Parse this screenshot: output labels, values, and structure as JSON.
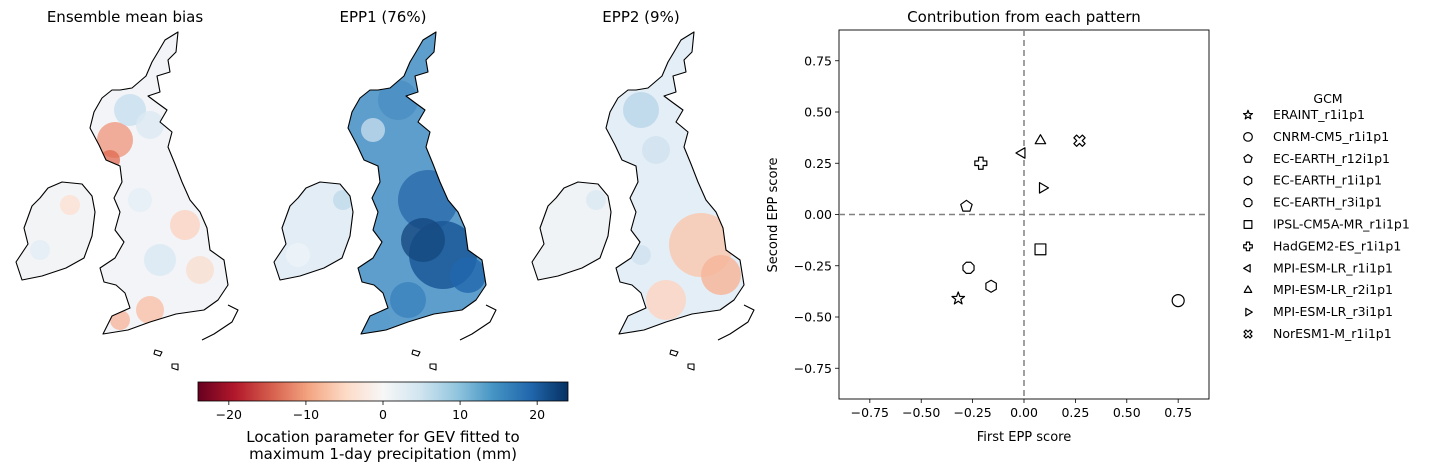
{
  "maps": [
    {
      "title": "Ensemble mean bias",
      "pattern": "bias"
    },
    {
      "title": "EPP1 (76%)",
      "pattern": "epp1"
    },
    {
      "title": "EPP2 (9%)",
      "pattern": "epp2"
    }
  ],
  "colorbar": {
    "colormap": "RdBu",
    "vmin": -24,
    "vmax": 24,
    "ticks": [
      -20,
      -10,
      0,
      10,
      20
    ],
    "tick_labels": [
      "−20",
      "−10",
      "0",
      "10",
      "20"
    ],
    "label_line1": "Location parameter for GEV fitted to",
    "label_line2": "maximum 1-day precipitation (mm)"
  },
  "chart_data": {
    "type": "scatter",
    "title": "Contribution from each pattern",
    "xlabel": "First EPP score",
    "ylabel": "Second EPP score",
    "xlim": [
      -0.9,
      0.9
    ],
    "ylim": [
      -0.9,
      0.9
    ],
    "xticks": [
      -0.75,
      -0.5,
      -0.25,
      0.0,
      0.25,
      0.5,
      0.75
    ],
    "xtick_labels": [
      "−0.75",
      "−0.50",
      "−0.25",
      "0.00",
      "0.25",
      "0.50",
      "0.75"
    ],
    "yticks": [
      -0.75,
      -0.5,
      -0.25,
      0.0,
      0.25,
      0.5,
      0.75
    ],
    "ytick_labels": [
      "−0.75",
      "−0.50",
      "−0.25",
      "0.00",
      "0.25",
      "0.50",
      "0.75"
    ],
    "reference_lines": {
      "x": 0,
      "y": 0,
      "style": "dashed",
      "color": "#808080"
    },
    "legend_title": "GCM",
    "legend_position": "outside-right",
    "series": [
      {
        "name": "ERAINT_r1i1p1",
        "marker": "star",
        "x": -0.32,
        "y": -0.41
      },
      {
        "name": "CNRM-CM5_r1i1p1",
        "marker": "circle",
        "x": 0.75,
        "y": -0.42
      },
      {
        "name": "EC-EARTH_r12i1p1",
        "marker": "pentagon",
        "x": -0.28,
        "y": 0.04
      },
      {
        "name": "EC-EARTH_r1i1p1",
        "marker": "hexagon",
        "x": -0.16,
        "y": -0.35
      },
      {
        "name": "EC-EARTH_r3i1p1",
        "marker": "octagon",
        "x": -0.27,
        "y": -0.26
      },
      {
        "name": "IPSL-CM5A-MR_r1i1p1",
        "marker": "square",
        "x": 0.08,
        "y": -0.17
      },
      {
        "name": "HadGEM2-ES_r1i1p1",
        "marker": "plus",
        "x": -0.21,
        "y": 0.25
      },
      {
        "name": "MPI-ESM-LR_r1i1p1",
        "marker": "triangle-left",
        "x": -0.01,
        "y": 0.3
      },
      {
        "name": "MPI-ESM-LR_r2i1p1",
        "marker": "triangle-up",
        "x": 0.08,
        "y": 0.36
      },
      {
        "name": "MPI-ESM-LR_r3i1p1",
        "marker": "triangle-right",
        "x": 0.09,
        "y": 0.13
      },
      {
        "name": "NorESM1-M_r1i1p1",
        "marker": "x-filled",
        "x": 0.27,
        "y": 0.36
      }
    ]
  }
}
